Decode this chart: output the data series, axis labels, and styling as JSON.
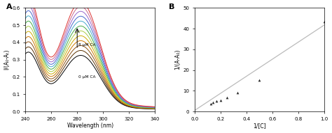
{
  "panel_A": {
    "xlabel": "Wavelength (nm)",
    "ylabel": "I/(A₀-Aₜ)",
    "xmin": 240,
    "xmax": 340,
    "ymin": 0,
    "ymax": 0.6,
    "label_8uM": "8 μM CA",
    "label_0uM": "0 μM CA",
    "colors": [
      "#000000",
      "#5a3000",
      "#8B5010",
      "#cc7700",
      "#ccaa00",
      "#aacc44",
      "#44aa44",
      "#44aacc",
      "#4466cc",
      "#9966cc",
      "#cc6688",
      "#dd3333"
    ],
    "n_curves": 12
  },
  "panel_B": {
    "xlabel": "1/[C]",
    "ylabel": "1/(A-A₀)",
    "xmin": 0,
    "xmax": 1.0,
    "ymin": 0,
    "ymax": 50,
    "scatter_x": [
      0.125,
      0.143,
      0.167,
      0.2,
      0.25,
      0.333,
      0.5,
      1.0
    ],
    "scatter_y": [
      3.8,
      4.3,
      5.0,
      5.5,
      6.8,
      9.2,
      15.0,
      43.5
    ],
    "line_x_start": 0.0,
    "line_x_end": 1.05,
    "line_y_start": 0.5,
    "line_y_end": 43.8,
    "line_color": "#bbbbbb"
  }
}
